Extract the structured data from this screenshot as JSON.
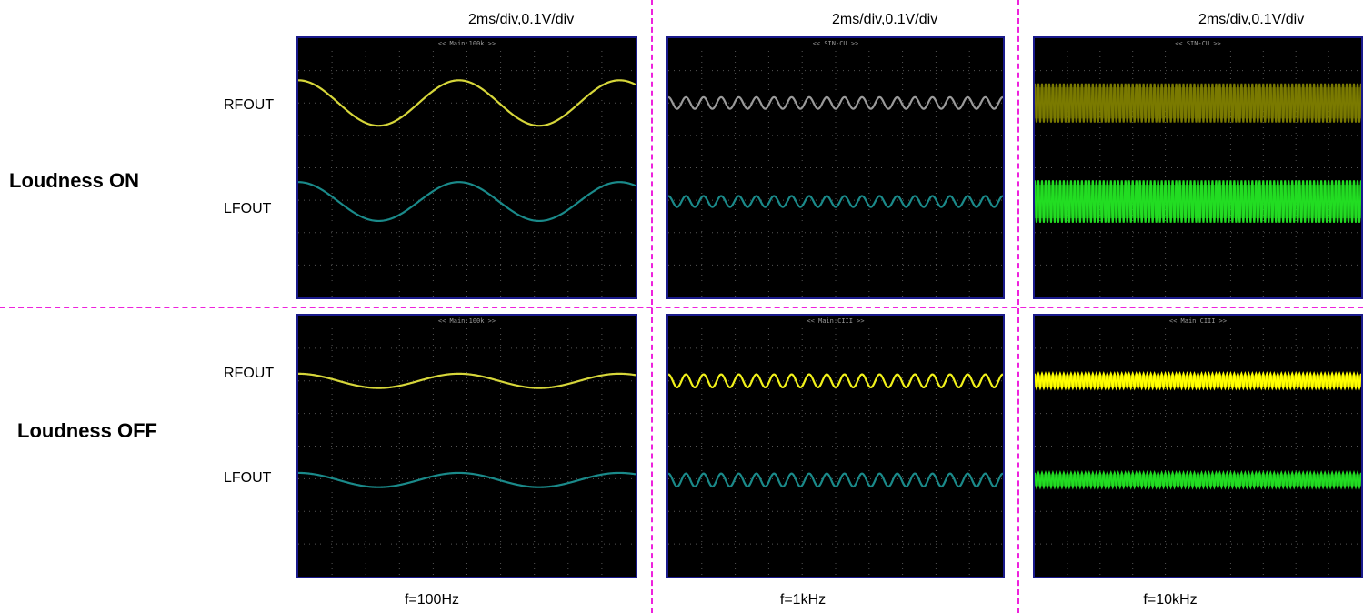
{
  "header": {
    "scales": [
      "2ms/div,0.1V/div",
      "2ms/div,0.1V/div",
      "2ms/div,0.1V/div"
    ]
  },
  "rows": [
    {
      "label": "Loudness ON"
    },
    {
      "label": "Loudness OFF"
    }
  ],
  "channels": {
    "rf": "RFOUT",
    "lf": "LFOUT"
  },
  "columns": [
    {
      "freq": "f=100Hz"
    },
    {
      "freq": "f=1kHz"
    },
    {
      "freq": "f=10kHz"
    }
  ],
  "scopes": [
    {
      "id": "on-100",
      "header": "<< Main:100k >>",
      "cycles": 2.1,
      "rf": {
        "color": "#d6d63a",
        "amp": 0.07,
        "fill": false
      },
      "lf": {
        "color": "#1a8a8a",
        "amp": 0.06,
        "fill": false
      }
    },
    {
      "id": "on-1k",
      "header": "<< SIN-CU >>",
      "cycles": 19,
      "rf": {
        "color": "#9a9a9a",
        "amp": 0.018,
        "fill": false
      },
      "lf": {
        "color": "#1a8a8a",
        "amp": 0.017,
        "fill": false
      }
    },
    {
      "id": "on-10k",
      "header": "<< SIN-CU >>",
      "cycles": 90,
      "rf": {
        "color": "#7a7a00",
        "amp": 0.06,
        "fill": true
      },
      "lf": {
        "color": "#22dd22",
        "amp": 0.065,
        "fill": true
      }
    },
    {
      "id": "off-100",
      "header": "<< Main:100k >>",
      "cycles": 2.1,
      "rf": {
        "color": "#d6d63a",
        "amp": 0.022,
        "fill": false
      },
      "lf": {
        "color": "#1a8a8a",
        "amp": 0.022,
        "fill": false
      }
    },
    {
      "id": "off-1k",
      "header": "<< Main:CIII >>",
      "cycles": 19,
      "rf": {
        "color": "#f2f21a",
        "amp": 0.02,
        "fill": false
      },
      "lf": {
        "color": "#1a8a8a",
        "amp": 0.02,
        "fill": false
      }
    },
    {
      "id": "off-10k",
      "header": "<< Main:CIII >>",
      "cycles": 90,
      "rf": {
        "color": "#ffff00",
        "amp": 0.022,
        "fill": true
      },
      "lf": {
        "color": "#22dd22",
        "amp": 0.022,
        "fill": true
      }
    }
  ]
}
